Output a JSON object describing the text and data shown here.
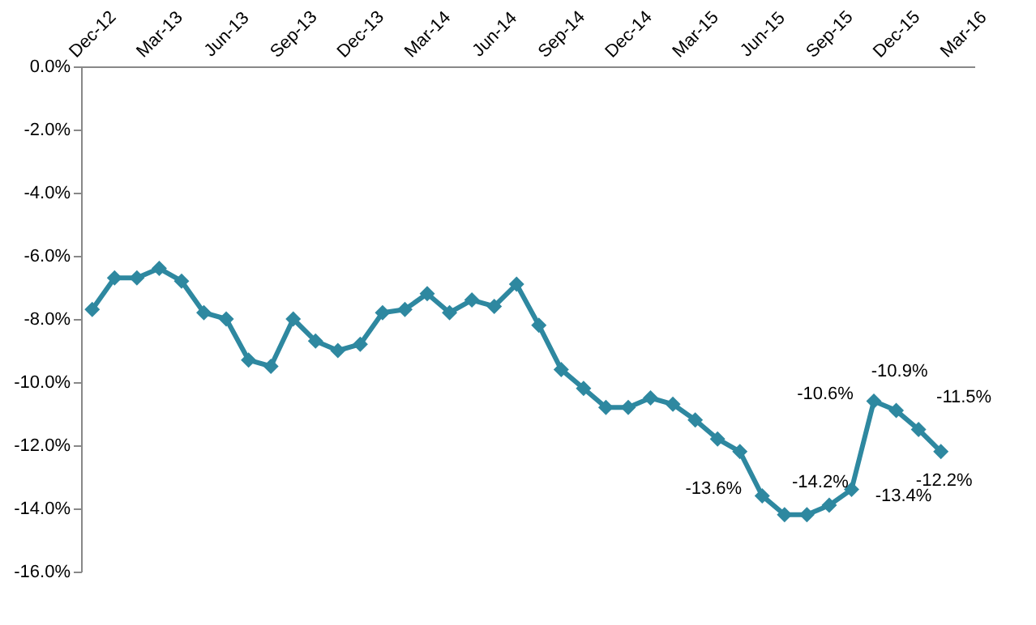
{
  "chart_data": {
    "type": "line",
    "categories": [
      "Dec-12",
      null,
      null,
      "Mar-13",
      null,
      null,
      "Jun-13",
      null,
      null,
      "Sep-13",
      null,
      null,
      "Dec-13",
      null,
      null,
      "Mar-14",
      null,
      null,
      "Jun-14",
      null,
      null,
      "Sep-14",
      null,
      null,
      "Dec-14",
      null,
      null,
      "Mar-15",
      null,
      null,
      "Jun-15",
      null,
      null,
      "Sep-15",
      null,
      null,
      "Dec-15",
      null,
      null,
      "Mar-16"
    ],
    "series": [
      {
        "color": "#2e88a0",
        "values": [
          -7.7,
          -6.7,
          -6.7,
          -6.4,
          -6.8,
          -7.8,
          -8.0,
          -9.3,
          -9.5,
          -8.0,
          -8.7,
          -9.0,
          -8.8,
          -7.8,
          -7.7,
          -7.2,
          -7.8,
          -7.4,
          -7.6,
          -6.9,
          -8.2,
          -9.6,
          -10.2,
          -10.8,
          -10.8,
          -10.5,
          -10.7,
          -11.2,
          -11.8,
          -12.2,
          -13.6,
          -14.2,
          -14.2,
          -13.9,
          -13.4,
          -10.6,
          -10.9,
          -11.5,
          -12.2,
          null
        ],
        "value_labels": [
          null,
          null,
          null,
          null,
          null,
          null,
          null,
          null,
          null,
          null,
          null,
          null,
          null,
          null,
          null,
          null,
          null,
          null,
          null,
          null,
          null,
          null,
          null,
          null,
          null,
          null,
          null,
          null,
          null,
          null,
          "-13.6%",
          "-14.2%",
          null,
          null,
          "-13.4%",
          "-10.6%",
          "-10.9%",
          "-11.5%",
          "-12.2%",
          null
        ]
      }
    ],
    "ylim": [
      -16,
      0
    ],
    "yticks": [
      {
        "value": 0,
        "label": "0.0%"
      },
      {
        "value": -2,
        "label": "-2.0%"
      },
      {
        "value": -4,
        "label": "-4.0%"
      },
      {
        "value": -6,
        "label": "-6.0%"
      },
      {
        "value": -8,
        "label": "-8.0%"
      },
      {
        "value": -10,
        "label": "-10.0%"
      },
      {
        "value": -12,
        "label": "-12.0%"
      },
      {
        "value": -14,
        "label": "-14.0%"
      },
      {
        "value": -16,
        "label": "-16.0%"
      }
    ],
    "marker": "diamond",
    "line_style": "solid",
    "grid": false
  }
}
